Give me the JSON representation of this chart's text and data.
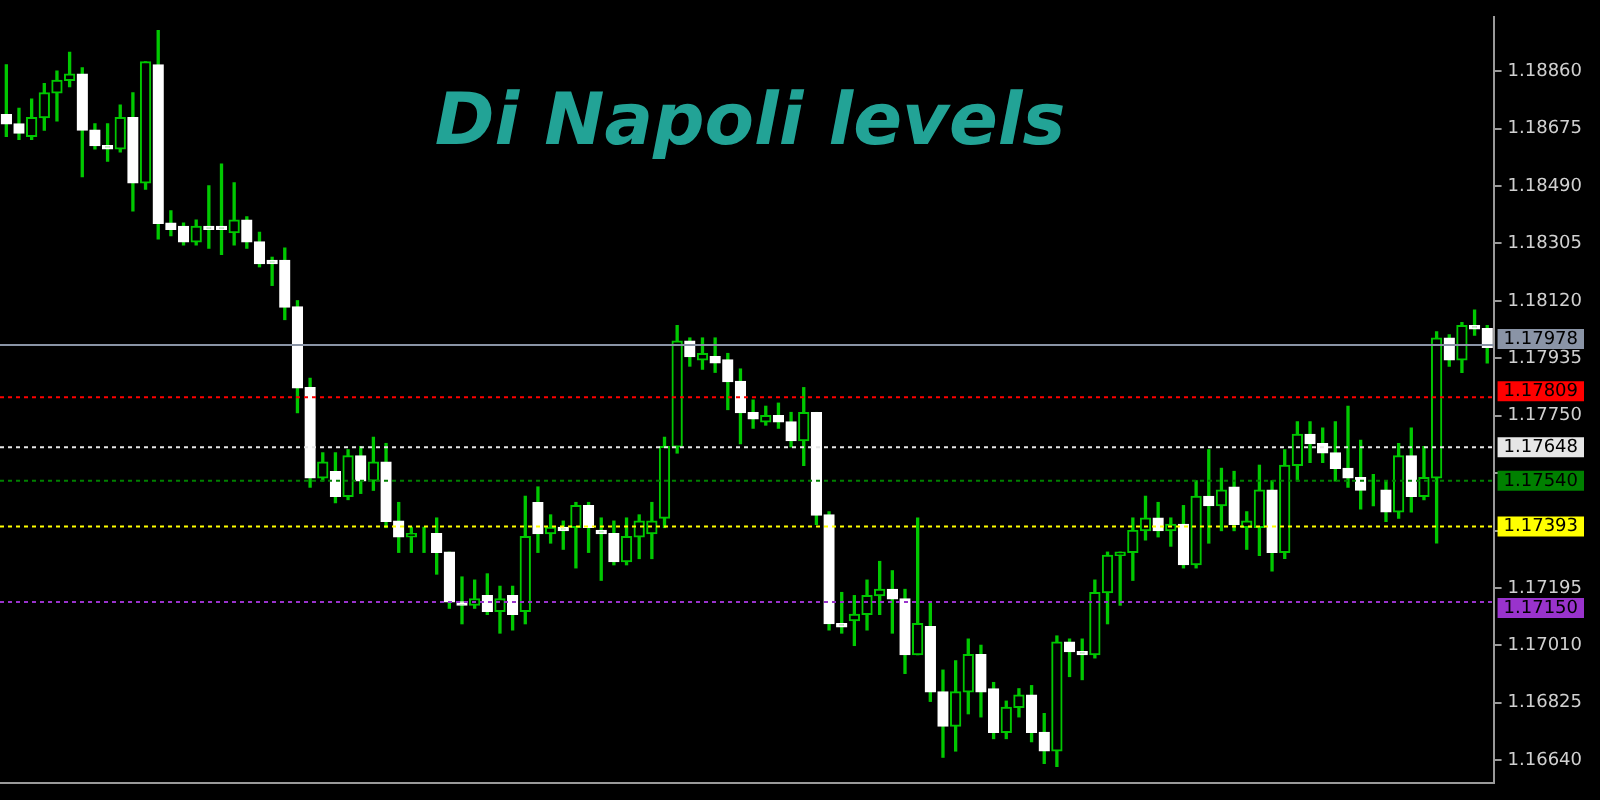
{
  "chart_data": {
    "type": "candlestick",
    "title": "Di Napoli levels",
    "categories": [
      null,
      null,
      null,
      null,
      null,
      null,
      null,
      null,
      null,
      null,
      null,
      null,
      null,
      null,
      null,
      null,
      null,
      null,
      null,
      null,
      null,
      null,
      null,
      null,
      null,
      null,
      null,
      null,
      null,
      null,
      null,
      null,
      null,
      null,
      null,
      null,
      null,
      null,
      null,
      null,
      null,
      null,
      null,
      null,
      null,
      null,
      null,
      null,
      null,
      null,
      null,
      null,
      null,
      null,
      null,
      null,
      null,
      null,
      null,
      null,
      null,
      null,
      null,
      null,
      null,
      null,
      null,
      null,
      null,
      null,
      null,
      null,
      null,
      null,
      null,
      null,
      null,
      null,
      null,
      null,
      null,
      null,
      null,
      null,
      null,
      null,
      null,
      null,
      null,
      null,
      null,
      null,
      null,
      null,
      null,
      null,
      null,
      null,
      null,
      null,
      null,
      null,
      null,
      null,
      null,
      null,
      null,
      null,
      null,
      null,
      null,
      null,
      null,
      null,
      null,
      null,
      null,
      null
    ],
    "ohlc": [
      [
        1.1872,
        1.1888,
        1.1865,
        1.1869
      ],
      [
        1.1869,
        1.1874,
        1.1864,
        1.1866
      ],
      [
        1.1865,
        1.1877,
        1.1864,
        1.1871
      ],
      [
        1.1871,
        1.1882,
        1.1867,
        1.1879
      ],
      [
        1.1879,
        1.1886,
        1.187,
        1.1883
      ],
      [
        1.1883,
        1.1892,
        1.1881,
        1.1885
      ],
      [
        1.1885,
        1.1887,
        1.1852,
        1.1867
      ],
      [
        1.1867,
        1.1869,
        1.1861,
        1.1862
      ],
      [
        1.1862,
        1.1869,
        1.1857,
        1.1861
      ],
      [
        1.1861,
        1.1875,
        1.186,
        1.1871
      ],
      [
        1.1871,
        1.1879,
        1.1841,
        1.185
      ],
      [
        1.185,
        1.1889,
        1.1848,
        1.1889
      ],
      [
        1.1888,
        1.1899,
        1.1832,
        1.1837
      ],
      [
        1.1837,
        1.1841,
        1.1833,
        1.1835
      ],
      [
        1.1836,
        1.1837,
        1.183,
        1.1831
      ],
      [
        1.1831,
        1.1838,
        1.183,
        1.1836
      ],
      [
        1.1836,
        1.1849,
        1.1829,
        1.1835
      ],
      [
        1.1836,
        1.1856,
        1.1827,
        1.1835
      ],
      [
        1.1834,
        1.185,
        1.183,
        1.1838
      ],
      [
        1.1838,
        1.1839,
        1.1829,
        1.1831
      ],
      [
        1.1831,
        1.1834,
        1.1823,
        1.1824
      ],
      [
        1.1825,
        1.1826,
        1.1817,
        1.1824
      ],
      [
        1.1825,
        1.1829,
        1.1806,
        1.181
      ],
      [
        1.181,
        1.1812,
        1.1776,
        1.1784
      ],
      [
        1.1784,
        1.1787,
        1.1752,
        1.1755
      ],
      [
        1.1755,
        1.1763,
        1.1754,
        1.176
      ],
      [
        1.1757,
        1.1763,
        1.1747,
        1.1749
      ],
      [
        1.1749,
        1.1764,
        1.1748,
        1.1762
      ],
      [
        1.1762,
        1.1765,
        1.175,
        1.1754
      ],
      [
        1.1754,
        1.1768,
        1.1751,
        1.176
      ],
      [
        1.176,
        1.1766,
        1.1739,
        1.1741
      ],
      [
        1.1741,
        1.1747,
        1.1731,
        1.1736
      ],
      [
        1.1736,
        1.1739,
        1.1731,
        1.1737
      ],
      [
        1.1737,
        1.1739,
        1.1731,
        1.1737
      ],
      [
        1.1737,
        1.1742,
        1.1724,
        1.1731
      ],
      [
        1.1731,
        1.1731,
        1.1713,
        1.1715
      ],
      [
        1.1715,
        1.1723,
        1.1708,
        1.1714
      ],
      [
        1.1714,
        1.1722,
        1.1713,
        1.1716
      ],
      [
        1.1717,
        1.1724,
        1.1711,
        1.1712
      ],
      [
        1.1712,
        1.172,
        1.1705,
        1.1716
      ],
      [
        1.1717,
        1.172,
        1.1706,
        1.1711
      ],
      [
        1.1712,
        1.1749,
        1.1708,
        1.1736
      ],
      [
        1.1747,
        1.1752,
        1.1731,
        1.1737
      ],
      [
        1.1737,
        1.1743,
        1.1734,
        1.1739
      ],
      [
        1.1739,
        1.1741,
        1.1732,
        1.1738
      ],
      [
        1.1739,
        1.1747,
        1.1726,
        1.1746
      ],
      [
        1.1746,
        1.1747,
        1.1731,
        1.1739
      ],
      [
        1.1738,
        1.1742,
        1.1722,
        1.1737
      ],
      [
        1.1737,
        1.1741,
        1.1727,
        1.1728
      ],
      [
        1.1728,
        1.1742,
        1.1727,
        1.1736
      ],
      [
        1.1736,
        1.1743,
        1.1729,
        1.1741
      ],
      [
        1.1737,
        1.1747,
        1.1729,
        1.1741
      ],
      [
        1.1742,
        1.1768,
        1.1739,
        1.1765
      ],
      [
        1.1765,
        1.1804,
        1.1763,
        1.1799
      ],
      [
        1.1799,
        1.18,
        1.1791,
        1.1794
      ],
      [
        1.1793,
        1.18,
        1.179,
        1.1795
      ],
      [
        1.1794,
        1.18,
        1.1789,
        1.1792
      ],
      [
        1.1793,
        1.1795,
        1.1777,
        1.1786
      ],
      [
        1.1786,
        1.179,
        1.1766,
        1.1776
      ],
      [
        1.1776,
        1.178,
        1.1771,
        1.1774
      ],
      [
        1.1773,
        1.1778,
        1.1772,
        1.1775
      ],
      [
        1.1775,
        1.1779,
        1.1771,
        1.1773
      ],
      [
        1.1773,
        1.1776,
        1.1765,
        1.1767
      ],
      [
        1.1767,
        1.1784,
        1.1759,
        1.1776
      ],
      [
        1.1776,
        1.1776,
        1.174,
        1.1743
      ],
      [
        1.1743,
        1.1744,
        1.1706,
        1.1708
      ],
      [
        1.1708,
        1.1718,
        1.1705,
        1.1707
      ],
      [
        1.1709,
        1.1717,
        1.1701,
        1.1711
      ],
      [
        1.1711,
        1.1722,
        1.1706,
        1.1717
      ],
      [
        1.1717,
        1.1728,
        1.1711,
        1.1719
      ],
      [
        1.1719,
        1.1725,
        1.1705,
        1.1716
      ],
      [
        1.1716,
        1.1719,
        1.1692,
        1.1698
      ],
      [
        1.1698,
        1.1742,
        1.1698,
        1.1708
      ],
      [
        1.1707,
        1.1715,
        1.1683,
        1.1686
      ],
      [
        1.1686,
        1.1693,
        1.1665,
        1.1675
      ],
      [
        1.1675,
        1.1696,
        1.1667,
        1.1686
      ],
      [
        1.1686,
        1.1703,
        1.1679,
        1.1698
      ],
      [
        1.1698,
        1.1701,
        1.1678,
        1.1686
      ],
      [
        1.1687,
        1.1689,
        1.1671,
        1.1673
      ],
      [
        1.1673,
        1.1683,
        1.1671,
        1.1681
      ],
      [
        1.1681,
        1.1687,
        1.1678,
        1.1685
      ],
      [
        1.1685,
        1.1688,
        1.167,
        1.1673
      ],
      [
        1.1673,
        1.1679,
        1.1663,
        1.1667
      ],
      [
        1.1667,
        1.1704,
        1.1662,
        1.1702
      ],
      [
        1.1702,
        1.1703,
        1.1691,
        1.1699
      ],
      [
        1.1699,
        1.1703,
        1.169,
        1.1698
      ],
      [
        1.1698,
        1.1722,
        1.1697,
        1.1718
      ],
      [
        1.1718,
        1.1731,
        1.1708,
        1.173
      ],
      [
        1.173,
        1.1731,
        1.1714,
        1.1731
      ],
      [
        1.1731,
        1.1742,
        1.1722,
        1.1738
      ],
      [
        1.1738,
        1.1749,
        1.1735,
        1.1742
      ],
      [
        1.1742,
        1.1747,
        1.1736,
        1.1738
      ],
      [
        1.1738,
        1.1742,
        1.1733,
        1.174
      ],
      [
        1.174,
        1.1746,
        1.1726,
        1.1727
      ],
      [
        1.1727,
        1.1754,
        1.1726,
        1.1749
      ],
      [
        1.1749,
        1.1764,
        1.1734,
        1.1746
      ],
      [
        1.1746,
        1.1758,
        1.1738,
        1.1751
      ],
      [
        1.1752,
        1.1757,
        1.1738,
        1.174
      ],
      [
        1.1739,
        1.1744,
        1.1732,
        1.1741
      ],
      [
        1.1739,
        1.1759,
        1.173,
        1.1751
      ],
      [
        1.1751,
        1.1754,
        1.1725,
        1.1731
      ],
      [
        1.1731,
        1.1764,
        1.1729,
        1.1759
      ],
      [
        1.1759,
        1.1773,
        1.1754,
        1.1769
      ],
      [
        1.1769,
        1.1773,
        1.176,
        1.1766
      ],
      [
        1.1766,
        1.1771,
        1.176,
        1.1763
      ],
      [
        1.1763,
        1.1773,
        1.1754,
        1.1758
      ],
      [
        1.1758,
        1.1778,
        1.1752,
        1.1755
      ],
      [
        1.1755,
        1.1767,
        1.1745,
        1.1751
      ],
      [
        1.1751,
        1.1756,
        1.1746,
        1.1751
      ],
      [
        1.1751,
        1.1754,
        1.1741,
        1.1744
      ],
      [
        1.1744,
        1.1766,
        1.1742,
        1.1762
      ],
      [
        1.1762,
        1.1771,
        1.1744,
        1.1749
      ],
      [
        1.1749,
        1.1765,
        1.1748,
        1.1755
      ],
      [
        1.1755,
        1.1802,
        1.1734,
        1.18
      ],
      [
        1.18,
        1.1801,
        1.1791,
        1.1793
      ],
      [
        1.1793,
        1.1805,
        1.1789,
        1.1804
      ],
      [
        1.1804,
        1.1809,
        1.1801,
        1.1803
      ],
      [
        1.1803,
        1.1804,
        1.1792,
        1.1797
      ]
    ],
    "ylim": [
      1.16566,
      1.19035
    ],
    "yticks": [
      {
        "value": 1.1664,
        "label": "1.16640"
      },
      1.16825,
      {
        "value": 1.1701,
        "label": "1.17010"
      },
      1.17195,
      {
        "value": 1.1738,
        "label": null
      },
      {
        "value": 1.17565,
        "label": null
      },
      {
        "value": 1.1775,
        "label": "1.17750"
      },
      1.17935,
      {
        "value": 1.1812,
        "label": "1.18120"
      },
      1.18305,
      {
        "value": 1.1849,
        "label": "1.18490"
      },
      1.18675,
      {
        "value": 1.1886,
        "label": "1.18860"
      }
    ],
    "ref_lines": [
      {
        "axis": "y",
        "value": 1.17978,
        "label": "1.17978",
        "color": "#8a94a6",
        "line_style": "solid"
      },
      {
        "axis": "y",
        "value": 1.17809,
        "label": "1.17809",
        "color": "#ff0000",
        "line_style": "dotted"
      },
      {
        "axis": "y",
        "value": 1.17648,
        "label": "1.17648",
        "color": "#e6e6e6",
        "line_style": "dotted"
      },
      {
        "axis": "y",
        "value": 1.1754,
        "label": "1.17540",
        "color": "#008000",
        "line_style": "dotted"
      },
      {
        "axis": "y",
        "value": 1.17393,
        "label": "1.17393",
        "color": "#ffff00",
        "line_style": "dotted"
      },
      {
        "axis": "y",
        "value": 1.1715,
        "label": "1.17150",
        "color": "#9933cc",
        "line_style": "dotted"
      }
    ],
    "tick_labels": "y",
    "legend": false
  }
}
